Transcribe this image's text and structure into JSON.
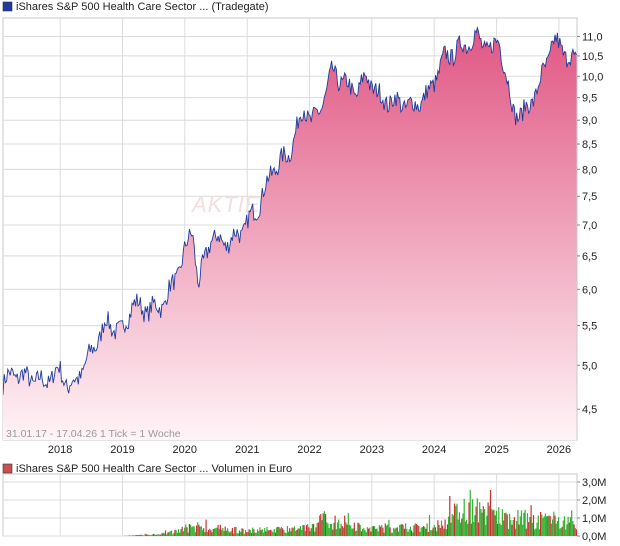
{
  "colors": {
    "price_line": "#1f3c9c",
    "area_top": "#e05683",
    "area_bottom": "#fff4f7",
    "grid": "#dcdcdc",
    "frame": "#c8c8c8",
    "vol_up": "#33b233",
    "vol_down": "#c83030",
    "legend_price": "#1f3c9c",
    "legend_volume": "#c85050"
  },
  "price_chart": {
    "legend": "iShares S&P 500 Health Care Sector ... (Tradegate)",
    "watermark": "AKTIE",
    "footer": "31.01.17 - 17.04.26   1 Tick = 1 Woche",
    "y_ticks": [
      "4,5",
      "5,0",
      "5,5",
      "6,0",
      "6,5",
      "7,0",
      "7,5",
      "8,0",
      "8,5",
      "9,0",
      "9,5",
      "10,0",
      "10,5",
      "11,0"
    ],
    "x_ticks": [
      "2018",
      "2019",
      "2020",
      "2021",
      "2022",
      "2023",
      "2024",
      "2025",
      "2026"
    ]
  },
  "volume_chart": {
    "legend": "iShares S&P 500 Health Care Sector ... Volumen in Euro",
    "y_ticks": [
      "0,0M",
      "1,0M",
      "2,0M",
      "3,0M"
    ]
  },
  "chart_data": [
    {
      "type": "area",
      "title": "iShares S&P 500 Health Care Sector ... (Tradegate)",
      "x_label": "",
      "y_label": "",
      "y_scale": "log",
      "x": [
        "2017-01-31",
        "2017-04-01",
        "2017-07-01",
        "2017-10-01",
        "2018-01-01",
        "2018-02-15",
        "2018-04-01",
        "2018-07-01",
        "2018-10-01",
        "2018-12-25",
        "2019-03-01",
        "2019-06-01",
        "2019-09-01",
        "2019-12-01",
        "2020-02-15",
        "2020-03-20",
        "2020-06-01",
        "2020-09-01",
        "2020-12-01",
        "2021-03-01",
        "2021-06-01",
        "2021-09-01",
        "2021-12-01",
        "2022-01-15",
        "2022-03-01",
        "2022-05-15",
        "2022-08-01",
        "2022-10-01",
        "2022-12-01",
        "2023-03-01",
        "2023-06-01",
        "2023-09-01",
        "2023-12-01",
        "2024-03-01",
        "2024-06-01",
        "2024-09-01",
        "2024-12-01",
        "2025-01-15",
        "2025-03-01",
        "2025-04-10",
        "2025-06-01",
        "2025-09-01",
        "2025-12-01",
        "2026-02-01",
        "2026-04-17"
      ],
      "y": [
        4.8,
        4.9,
        4.85,
        4.8,
        4.95,
        4.75,
        4.8,
        5.15,
        5.55,
        5.4,
        5.8,
        5.7,
        5.8,
        6.3,
        6.95,
        6.05,
        6.8,
        6.7,
        6.9,
        7.3,
        8.0,
        8.3,
        9.3,
        8.95,
        9.2,
        10.1,
        9.8,
        9.6,
        10.0,
        9.45,
        9.4,
        9.3,
        9.6,
        10.45,
        10.7,
        11.0,
        10.6,
        11.0,
        9.9,
        9.2,
        9.1,
        9.7,
        10.9,
        10.6,
        10.3
      ],
      "ylim": [
        4.18,
        11.5
      ],
      "series": [
        {
          "name": "iShares S&P 500 Health Care Sector ... (Tradegate)"
        }
      ]
    },
    {
      "type": "bar",
      "title": "iShares S&P 500 Health Care Sector ... Volumen in Euro",
      "x_label": "",
      "y_label": "",
      "unit": "M Euro",
      "ylim": [
        0,
        3.0
      ],
      "x": [
        "2017-01",
        "2018-01",
        "2019-01",
        "2019-10",
        "2020-03",
        "2021-01",
        "2022-01",
        "2022-04",
        "2023-01",
        "2024-01",
        "2024-07",
        "2025-04",
        "2026-01",
        "2026-04"
      ],
      "y": [
        0.0,
        0.0,
        0.0,
        0.25,
        0.8,
        0.45,
        0.65,
        1.5,
        0.7,
        0.8,
        2.4,
        1.5,
        1.4,
        1.0
      ]
    }
  ]
}
